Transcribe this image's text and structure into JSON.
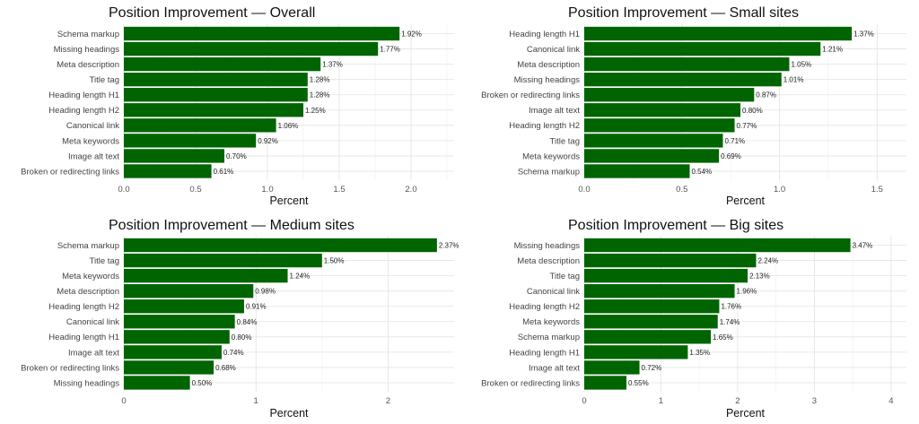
{
  "chart_data": [
    {
      "type": "bar",
      "orientation": "horizontal",
      "title": "Position Improvement — Overall",
      "xlabel": "Percent",
      "xlim": [
        0,
        2.3
      ],
      "ticks": [
        0,
        0.5,
        1,
        1.5,
        2
      ],
      "tick_labels": [
        "0.0",
        "0.5",
        "1.0",
        "1.5",
        "2.0"
      ],
      "categories": [
        "Schema markup",
        "Missing headings",
        "Meta description",
        "Title tag",
        "Heading length H1",
        "Heading length H2",
        "Canonical link",
        "Meta keywords",
        "Image alt text",
        "Broken or redirecting links"
      ],
      "values": [
        1.92,
        1.77,
        1.37,
        1.28,
        1.28,
        1.25,
        1.06,
        0.92,
        0.7,
        0.61
      ],
      "value_labels": [
        "1.92%",
        "1.77%",
        "1.37%",
        "1.28%",
        "1.28%",
        "1.25%",
        "1.06%",
        "0.92%",
        "0.70%",
        "0.61%"
      ],
      "bar_color": "#006400",
      "grid": true
    },
    {
      "type": "bar",
      "orientation": "horizontal",
      "title": "Position Improvement — Small sites",
      "xlabel": "Percent",
      "xlim": [
        0,
        1.65
      ],
      "ticks": [
        0,
        0.5,
        1,
        1.5
      ],
      "tick_labels": [
        "0.0",
        "0.5",
        "1.0",
        "1.5"
      ],
      "categories": [
        "Heading length H1",
        "Canonical link",
        "Meta description",
        "Missing headings",
        "Broken or redirecting links",
        "Image alt text",
        "Heading length H2",
        "Title tag",
        "Meta keywords",
        "Schema markup"
      ],
      "values": [
        1.37,
        1.21,
        1.05,
        1.01,
        0.87,
        0.8,
        0.77,
        0.71,
        0.69,
        0.54
      ],
      "value_labels": [
        "1.37%",
        "1.21%",
        "1.05%",
        "1.01%",
        "0.87%",
        "0.80%",
        "0.77%",
        "0.71%",
        "0.69%",
        "0.54%"
      ],
      "bar_color": "#006400",
      "grid": true
    },
    {
      "type": "bar",
      "orientation": "horizontal",
      "title": "Position Improvement — Medium sites",
      "xlabel": "Percent",
      "xlim": [
        0,
        2.5
      ],
      "ticks": [
        0,
        1,
        2
      ],
      "tick_labels": [
        "0",
        "1",
        "2"
      ],
      "categories": [
        "Schema markup",
        "Title tag",
        "Meta keywords",
        "Meta description",
        "Heading length H2",
        "Canonical link",
        "Heading length H1",
        "Image alt text",
        "Broken or redirecting links",
        "Missing headings"
      ],
      "values": [
        2.37,
        1.5,
        1.24,
        0.98,
        0.91,
        0.84,
        0.8,
        0.74,
        0.68,
        0.5
      ],
      "value_labels": [
        "2.37%",
        "1.50%",
        "1.24%",
        "0.98%",
        "0.91%",
        "0.84%",
        "0.80%",
        "0.74%",
        "0.68%",
        "0.50%"
      ],
      "bar_color": "#006400",
      "grid": true
    },
    {
      "type": "bar",
      "orientation": "horizontal",
      "title": "Position Improvement — Big sites",
      "xlabel": "Percent",
      "xlim": [
        0,
        4.2
      ],
      "ticks": [
        0,
        1,
        2,
        3,
        4
      ],
      "tick_labels": [
        "0",
        "1",
        "2",
        "3",
        "4"
      ],
      "categories": [
        "Missing headings",
        "Meta description",
        "Title tag",
        "Canonical link",
        "Heading length H2",
        "Meta keywords",
        "Schema markup",
        "Heading length H1",
        "Image alt text",
        "Broken or redirecting links"
      ],
      "values": [
        3.47,
        2.24,
        2.13,
        1.96,
        1.76,
        1.74,
        1.65,
        1.35,
        0.72,
        0.55
      ],
      "value_labels": [
        "3.47%",
        "2.24%",
        "2.13%",
        "1.96%",
        "1.76%",
        "1.74%",
        "1.65%",
        "1.35%",
        "0.72%",
        "0.55%"
      ],
      "bar_color": "#006400",
      "grid": true
    }
  ]
}
